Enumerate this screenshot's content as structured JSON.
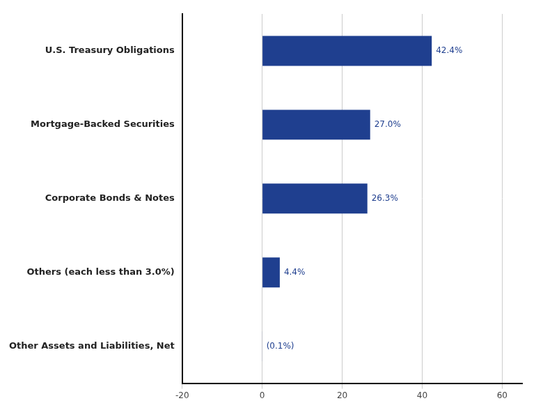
{
  "chart_data": {
    "type": "bar",
    "orientation": "horizontal",
    "categories": [
      "Other Assets and Liabilities, Net",
      "Others (each less than 3.0%)",
      "Corporate Bonds & Notes",
      "Mortgage-Backed Securities",
      "U.S. Treasury Obligations"
    ],
    "values": [
      -0.1,
      4.4,
      26.3,
      27.0,
      42.4
    ],
    "value_labels": [
      "(0.1%)",
      "4.4%",
      "26.3%",
      "27.0%",
      "42.4%"
    ],
    "data_labels": true,
    "color": "#1F3F8F",
    "xlim": [
      -20,
      65
    ],
    "xticks": [
      -20,
      0,
      20,
      40,
      60
    ],
    "grid": true
  }
}
